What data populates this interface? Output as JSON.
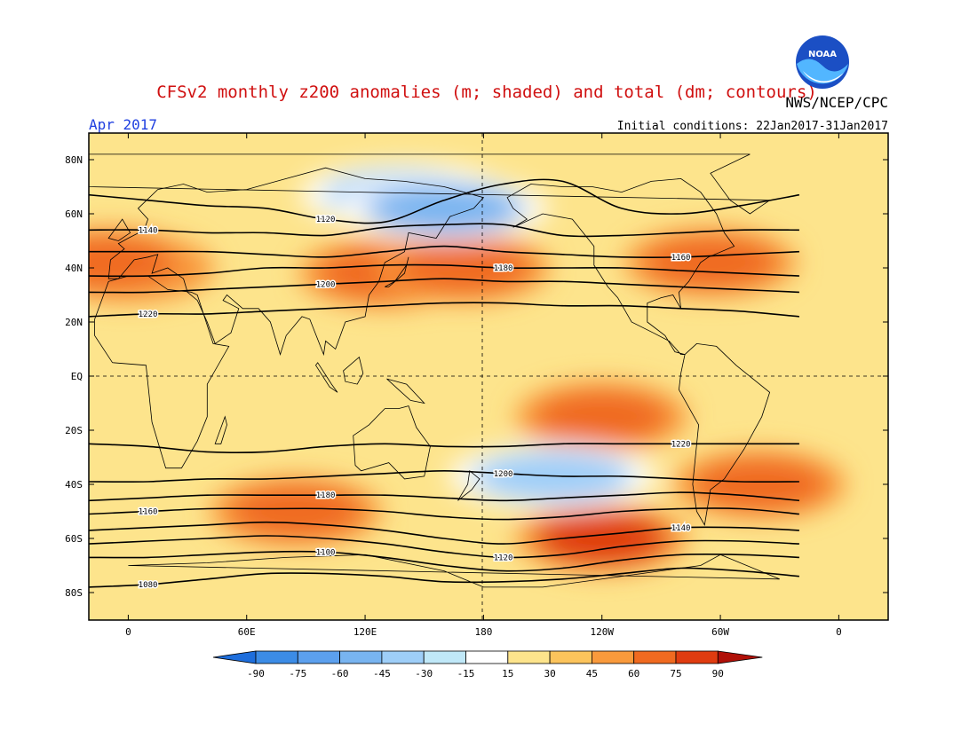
{
  "header": {
    "title": "CFSv2 monthly z200 anomalies (m; shaded) and total (dm; contours)",
    "month": "Apr 2017",
    "agency": "NWS/NCEP/CPC",
    "initial_conditions": "Initial conditions: 22Jan2017-31Jan2017",
    "logo_text": "NOAA"
  },
  "colors": {
    "title": "#d01010",
    "month": "#2040e0",
    "noaa_blue": "#1b4fc4",
    "noaa_light": "#52b6ff"
  },
  "map": {
    "lat_labels": [
      "80N",
      "60N",
      "40N",
      "20N",
      "EQ",
      "20S",
      "40S",
      "60S",
      "80S"
    ],
    "lon_labels": [
      "0",
      "60E",
      "120E",
      "180",
      "120W",
      "60W",
      "0"
    ]
  },
  "colorbar": {
    "ticks": [
      "-90",
      "-75",
      "-60",
      "-45",
      "-30",
      "-15",
      "15",
      "30",
      "45",
      "60",
      "75",
      "90"
    ],
    "colors": [
      "#1e6edc",
      "#3c8ce6",
      "#5ca0ee",
      "#78b4f0",
      "#9ecef8",
      "#c0e8f8",
      "#ffffff",
      "#fde48c",
      "#fcc45c",
      "#f99a3c",
      "#f06a20",
      "#e03c10",
      "#b01008"
    ]
  },
  "anomaly_regions": [
    {
      "lon": 0,
      "lat": 40,
      "level": "60"
    },
    {
      "lon": 130,
      "lat": 38,
      "level": "60"
    },
    {
      "lon": 170,
      "lat": 40,
      "level": "60"
    },
    {
      "lon": -65,
      "lat": 42,
      "level": "60"
    },
    {
      "lon": -10,
      "lat": 42,
      "level": "60"
    },
    {
      "lon": -120,
      "lat": -15,
      "level": "60"
    },
    {
      "lon": -40,
      "lat": -40,
      "level": "60"
    },
    {
      "lon": 85,
      "lat": -50,
      "level": "60"
    },
    {
      "lon": -120,
      "lat": -60,
      "level": "75"
    },
    {
      "lon": 140,
      "lat": 67,
      "level": "-30"
    },
    {
      "lon": 160,
      "lat": 62,
      "level": "-45"
    },
    {
      "lon": -145,
      "lat": -37,
      "level": "-30"
    }
  ],
  "contours": [
    {
      "label": "1080",
      "values": [
        -78,
        -77,
        -75,
        -73,
        -73,
        -74,
        -76,
        -76,
        -75,
        -73,
        -71,
        -72,
        -74
      ]
    },
    {
      "label": "1100",
      "values": [
        -67,
        -67,
        -66,
        -65,
        -65,
        -67,
        -70,
        -72,
        -71,
        -68,
        -66,
        -66,
        -67
      ]
    },
    {
      "label": "1120",
      "values": [
        -62,
        -61,
        -60,
        -59,
        -60,
        -62,
        -65,
        -67,
        -66,
        -63,
        -61,
        -61,
        -62
      ]
    },
    {
      "label": "1140",
      "values": [
        -57,
        -56,
        -55,
        -54,
        -55,
        -57,
        -60,
        -62,
        -60,
        -58,
        -56,
        -56,
        -57
      ]
    },
    {
      "label": "1160",
      "values": [
        -51,
        -50,
        -49,
        -49,
        -49,
        -50,
        -52,
        -53,
        -52,
        -50,
        -49,
        -49,
        -51
      ]
    },
    {
      "label": "1180",
      "values": [
        -46,
        -45,
        -44,
        -44,
        -44,
        -44,
        -45,
        -46,
        -45,
        -44,
        -43,
        -44,
        -46
      ]
    },
    {
      "label": "1200",
      "values": [
        -39,
        -39,
        -38,
        -38,
        -37,
        -36,
        -35,
        -36,
        -37,
        -37,
        -38,
        -39,
        -39
      ]
    },
    {
      "label": "1220",
      "values": [
        -25,
        -26,
        -28,
        -28,
        -26,
        -25,
        -26,
        -26,
        -25,
        -25,
        -25,
        -25,
        -25
      ]
    },
    {
      "label": "1220",
      "values": [
        22,
        23,
        23,
        24,
        25,
        26,
        27,
        27,
        26,
        26,
        25,
        24,
        22
      ]
    },
    {
      "label": "1200",
      "values": [
        31,
        31,
        32,
        33,
        34,
        35,
        36,
        35,
        35,
        34,
        33,
        32,
        31
      ]
    },
    {
      "label": "1180",
      "values": [
        37,
        37,
        38,
        40,
        40,
        41,
        41,
        40,
        40,
        40,
        39,
        38,
        37
      ]
    },
    {
      "label": "1160",
      "values": [
        46,
        46,
        46,
        45,
        44,
        46,
        48,
        46,
        45,
        44,
        44,
        45,
        46
      ]
    },
    {
      "label": "1140",
      "values": [
        54,
        54,
        53,
        53,
        52,
        55,
        56,
        56,
        52,
        52,
        53,
        54,
        54
      ]
    },
    {
      "label": "1120",
      "values": [
        67,
        65,
        63,
        62,
        58,
        57,
        65,
        71,
        72,
        62,
        60,
        63,
        67
      ]
    }
  ]
}
